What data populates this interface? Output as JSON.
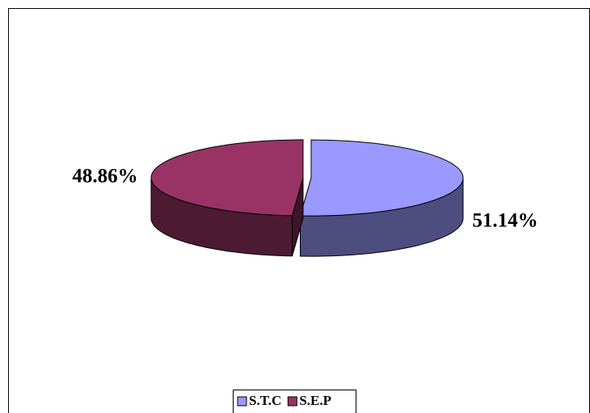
{
  "chart_data": {
    "type": "pie",
    "categories": [
      "S.T.C",
      "S.E.P"
    ],
    "values": [
      51.14,
      48.86
    ],
    "value_labels": [
      "51.14%",
      "48.86%"
    ],
    "colors": [
      "#9999ff",
      "#993366"
    ],
    "legend": "bottom"
  }
}
